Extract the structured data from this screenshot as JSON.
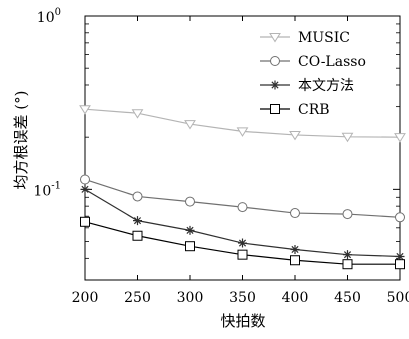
{
  "chart_data": {
    "type": "line",
    "xlabel": "快拍数",
    "ylabel": "均方根误差 (°)",
    "x": [
      200,
      250,
      300,
      350,
      400,
      450,
      500
    ],
    "xlim": [
      200,
      500
    ],
    "ylim": [
      0.03,
      1
    ],
    "yscale": "log",
    "xticks": [
      "200",
      "250",
      "300",
      "350",
      "400",
      "450",
      "500"
    ],
    "yticks": [
      {
        "value": 1,
        "base": "10",
        "exp": "0"
      },
      {
        "value": 0.1,
        "base": "10",
        "exp": "-1"
      }
    ],
    "legend_position": "top-right",
    "grid": false,
    "series": [
      {
        "name": "MUSIC",
        "marker": "triangle-down",
        "color": "#b4b4b4",
        "values": [
          0.29,
          0.275,
          0.238,
          0.216,
          0.206,
          0.201,
          0.2
        ]
      },
      {
        "name": "CO-Lasso",
        "marker": "circle",
        "color": "#707070",
        "values": [
          0.114,
          0.091,
          0.085,
          0.079,
          0.073,
          0.072,
          0.069
        ]
      },
      {
        "name": "本文方法",
        "marker": "star",
        "color": "#303030",
        "values": [
          0.1,
          0.066,
          0.058,
          0.049,
          0.045,
          0.042,
          0.041
        ]
      },
      {
        "name": "CRB",
        "marker": "square",
        "color": "#000000",
        "values": [
          0.065,
          0.054,
          0.047,
          0.042,
          0.039,
          0.037,
          0.037
        ]
      }
    ]
  }
}
